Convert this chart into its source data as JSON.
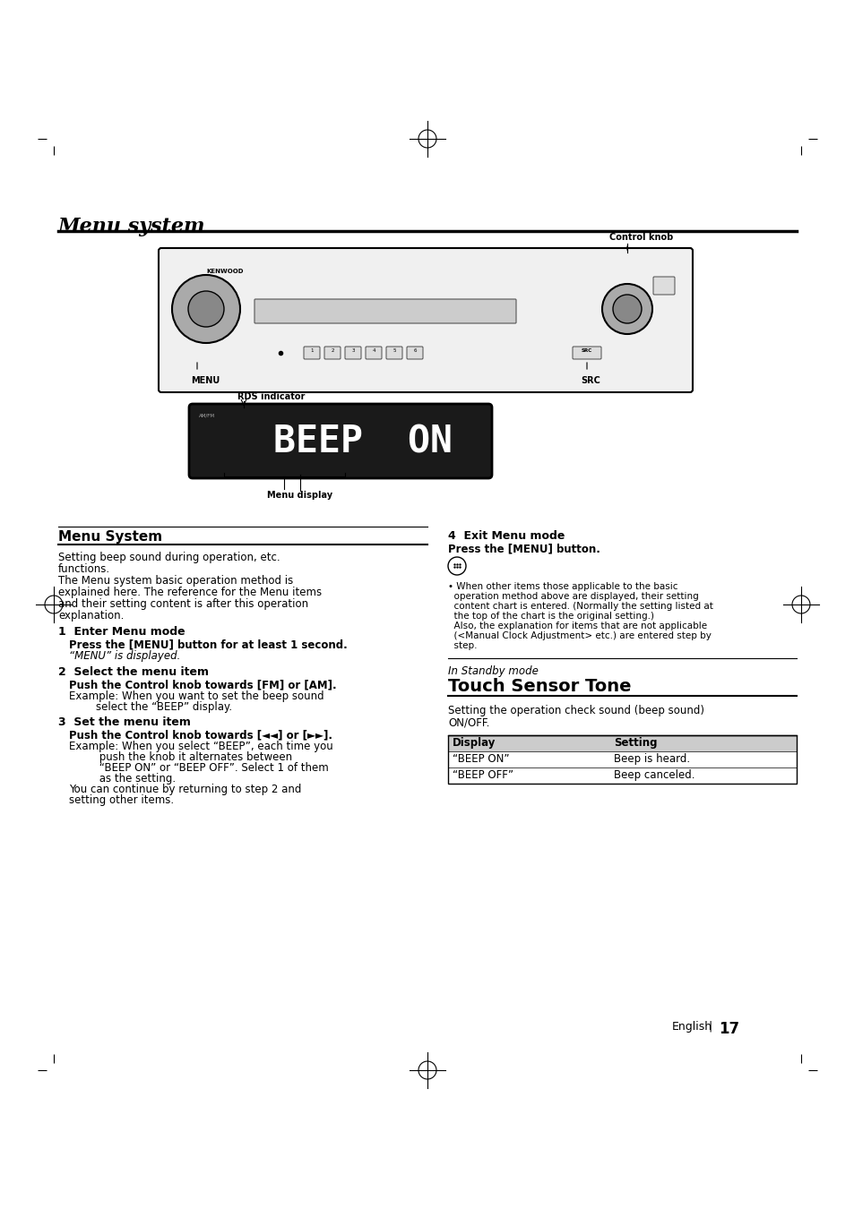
{
  "bg_color": "#ffffff",
  "title": "Menu system",
  "page_number": "17",
  "page_language": "English",
  "section1_title": "Menu System",
  "section1_intro": "Setting beep sound during operation, etc.\nfunctions.\nThe Menu system basic operation method is\nexplained here. The reference for the Menu items\nand their setting content is after this operation\nexplanation.",
  "step1_title": "1  Enter Menu mode",
  "step1_bold": "Press the [MENU] button for at least 1 second.",
  "step1_text": "“MENU” is displayed.",
  "step2_title": "2  Select the menu item",
  "step2_bold": "Push the Control knob towards [FM] or [AM].",
  "step2_text": "Example: When you want to set the beep sound\n        select the “BEEP” display.",
  "step3_title": "3  Set the menu item",
  "step3_bold": "Push the Control knob towards [◄◄] or [►►].",
  "step3_text": "Example: When you select “BEEP”, each time you\n         push the knob it alternates between\n         “BEEP ON” or “BEEP OFF”. Select 1 of them\n         as the setting.\nYou can continue by returning to step 2 and\nsetting other items.",
  "step4_title": "4  Exit Menu mode",
  "step4_bold": "Press the [MENU] button.",
  "step4_note": "• When other items those applicable to the basic\n  operation method above are displayed, their setting\n  content chart is entered. (Normally the setting listed at\n  the top of the chart is the original setting.)\n  Also, the explanation for items that are not applicable\n  (<Manual Clock Adjustment> etc.) are entered step by\n  step.",
  "section2_italic": "In Standby mode",
  "section2_title": "Touch Sensor Tone",
  "section2_divider": true,
  "section2_intro": "Setting the operation check sound (beep sound)\nON/OFF.",
  "table_header": [
    "Display",
    "Setting"
  ],
  "table_rows": [
    [
      "“BEEP ON”",
      "Beep is heard."
    ],
    [
      "“BEEP OFF”",
      "Beep canceled."
    ]
  ],
  "label_control_knob": "Control knob",
  "label_menu": "MENU",
  "label_src": "SRC",
  "label_rds": "RDS indicator",
  "label_menu_display": "Menu display",
  "display_text": "BEEP  ON"
}
